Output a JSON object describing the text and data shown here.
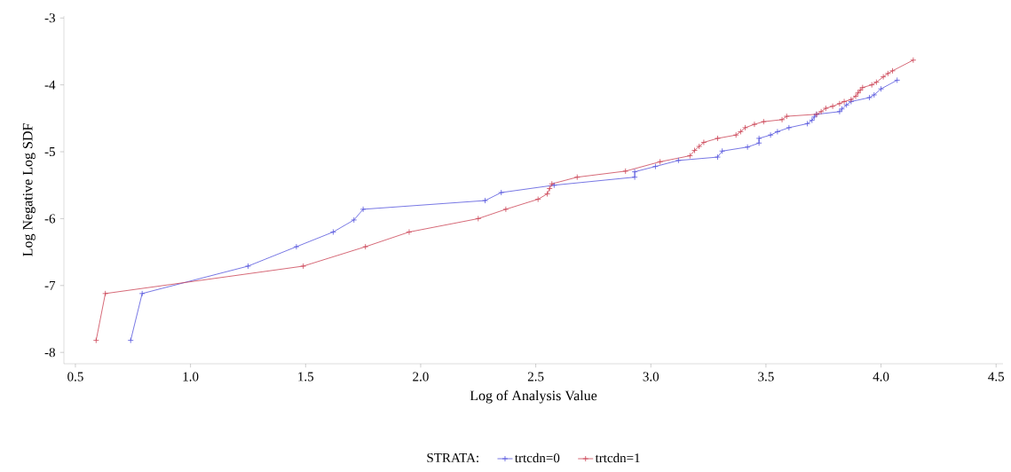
{
  "chart_data": {
    "type": "line",
    "xlabel": "Log of Analysis Value",
    "ylabel": "Log Negative Log SDF",
    "legend_title": "STRATA:",
    "xlim": [
      0.45,
      4.53
    ],
    "ylim": [
      -8.17,
      -2.97
    ],
    "xticks": [
      0.5,
      {
        "value": 1,
        "label": "1.0"
      },
      1.5,
      {
        "value": 2,
        "label": "2.0"
      },
      2.5,
      {
        "value": 3,
        "label": "3.0"
      },
      3.5,
      {
        "value": 4,
        "label": "4.0"
      },
      4.5
    ],
    "yticks": [
      -8,
      -7,
      -6,
      -5,
      -4,
      -3
    ],
    "grid": false,
    "legend": "bottom",
    "marker": "cross",
    "line_style": "solid",
    "series": [
      {
        "name": "trtcdn=0",
        "color": "#5555dd",
        "x": [
          0.74,
          0.79,
          1.25,
          1.46,
          1.62,
          1.71,
          1.75,
          2.28,
          2.35,
          2.58,
          2.93,
          2.93,
          3.02,
          3.12,
          3.29,
          3.31,
          3.42,
          3.47,
          3.47,
          3.52,
          3.55,
          3.6,
          3.68,
          3.7,
          3.71,
          3.72,
          3.82,
          3.83,
          3.85,
          3.87,
          3.95,
          3.97,
          4.0,
          4.07
        ],
        "values": [
          -7.82,
          -7.12,
          -6.71,
          -6.42,
          -6.2,
          -6.02,
          -5.86,
          -5.73,
          -5.61,
          -5.5,
          -5.38,
          -5.3,
          -5.22,
          -5.13,
          -5.08,
          -4.99,
          -4.93,
          -4.87,
          -4.8,
          -4.75,
          -4.7,
          -4.64,
          -4.58,
          -4.53,
          -4.48,
          -4.44,
          -4.4,
          -4.36,
          -4.3,
          -4.25,
          -4.19,
          -4.15,
          -4.06,
          -3.93
        ]
      },
      {
        "name": "trtcdn=1",
        "color": "#cc4455",
        "x": [
          0.59,
          0.63,
          1.49,
          1.76,
          1.95,
          2.25,
          2.37,
          2.51,
          2.55,
          2.56,
          2.57,
          2.68,
          2.89,
          3.04,
          3.17,
          3.19,
          3.21,
          3.23,
          3.29,
          3.37,
          3.39,
          3.41,
          3.45,
          3.49,
          3.57,
          3.59,
          3.72,
          3.74,
          3.76,
          3.79,
          3.82,
          3.84,
          3.87,
          3.89,
          3.9,
          3.91,
          3.92,
          3.96,
          3.98,
          4.01,
          4.03,
          4.05,
          4.14
        ],
        "values": [
          -7.82,
          -7.12,
          -6.71,
          -6.42,
          -6.2,
          -6.0,
          -5.86,
          -5.71,
          -5.63,
          -5.55,
          -5.48,
          -5.38,
          -5.29,
          -5.15,
          -5.06,
          -4.98,
          -4.92,
          -4.86,
          -4.8,
          -4.75,
          -4.7,
          -4.64,
          -4.59,
          -4.55,
          -4.52,
          -4.47,
          -4.44,
          -4.4,
          -4.35,
          -4.32,
          -4.28,
          -4.25,
          -4.22,
          -4.17,
          -4.12,
          -4.08,
          -4.04,
          -4.0,
          -3.96,
          -3.88,
          -3.83,
          -3.79,
          -3.63
        ]
      }
    ]
  }
}
